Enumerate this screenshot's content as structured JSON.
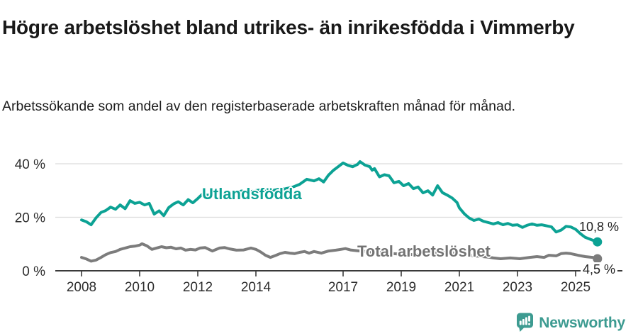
{
  "header": {
    "title": "Högre arbetslöshet bland utrikes- än inrikesfödda i Vimmerby",
    "subtitle": "Arbetssökande som andel av den registerbaserade arbetskraften månad för månad."
  },
  "chart_data": {
    "type": "line",
    "title": "Högre arbetslöshet bland utrikes- än inrikesfödda i Vimmerby",
    "subtitle": "Arbetssökande som andel av den registerbaserade arbetskraften månad för månad.",
    "unit": "%",
    "x_ticks": [
      2008,
      2010,
      2012,
      2014,
      2017,
      2019,
      2021,
      2023,
      2025
    ],
    "y_ticks": [
      {
        "value": 0,
        "label": "0 %"
      },
      {
        "value": 20,
        "label": "20 %"
      },
      {
        "value": 40,
        "label": "40 %"
      }
    ],
    "xlim": [
      2007.1,
      2026.6
    ],
    "ylim": [
      0,
      44
    ],
    "grid": "horizontal",
    "legend_position": "inline-labels",
    "colors": {
      "foreign_born": "#0ca294",
      "total": "#7c7c7c",
      "gridline": "#dcdcdc",
      "axis": "#3a3a3a"
    },
    "series": [
      {
        "name": "Utlandsfödda",
        "color": "#0ca294",
        "end_label": "10,8 %",
        "end_value": 10.8,
        "points": [
          [
            2008.0,
            19.0
          ],
          [
            2008.17,
            18.3
          ],
          [
            2008.33,
            17.2
          ],
          [
            2008.5,
            19.8
          ],
          [
            2008.67,
            21.8
          ],
          [
            2008.83,
            22.5
          ],
          [
            2009.0,
            23.8
          ],
          [
            2009.17,
            23.0
          ],
          [
            2009.33,
            24.6
          ],
          [
            2009.5,
            23.2
          ],
          [
            2009.67,
            26.2
          ],
          [
            2009.83,
            25.2
          ],
          [
            2010.0,
            25.6
          ],
          [
            2010.17,
            24.6
          ],
          [
            2010.33,
            25.2
          ],
          [
            2010.5,
            21.2
          ],
          [
            2010.67,
            22.4
          ],
          [
            2010.83,
            20.6
          ],
          [
            2011.0,
            23.6
          ],
          [
            2011.17,
            25.0
          ],
          [
            2011.33,
            25.8
          ],
          [
            2011.5,
            24.6
          ],
          [
            2011.67,
            26.6
          ],
          [
            2011.83,
            25.4
          ],
          [
            2012.0,
            27.0
          ],
          [
            2012.17,
            28.8
          ],
          [
            2012.33,
            28.2
          ],
          [
            2012.5,
            28.6
          ],
          [
            2012.67,
            29.2
          ],
          [
            2012.83,
            28.8
          ],
          [
            2013.0,
            29.4
          ],
          [
            2013.25,
            29.0
          ],
          [
            2013.5,
            29.8
          ],
          [
            2013.75,
            29.4
          ],
          [
            2014.0,
            30.0
          ],
          [
            2014.25,
            30.4
          ],
          [
            2014.5,
            29.8
          ],
          [
            2014.75,
            30.4
          ],
          [
            2015.0,
            30.6
          ],
          [
            2015.25,
            31.2
          ],
          [
            2015.5,
            32.3
          ],
          [
            2015.75,
            34.2
          ],
          [
            2016.0,
            33.6
          ],
          [
            2016.17,
            34.4
          ],
          [
            2016.33,
            33.2
          ],
          [
            2016.5,
            35.8
          ],
          [
            2016.67,
            37.6
          ],
          [
            2016.83,
            38.9
          ],
          [
            2017.0,
            40.3
          ],
          [
            2017.17,
            39.4
          ],
          [
            2017.33,
            38.9
          ],
          [
            2017.5,
            39.8
          ],
          [
            2017.58,
            40.8
          ],
          [
            2017.75,
            39.5
          ],
          [
            2017.92,
            38.9
          ],
          [
            2018.0,
            37.6
          ],
          [
            2018.08,
            38.2
          ],
          [
            2018.25,
            35.1
          ],
          [
            2018.42,
            35.9
          ],
          [
            2018.58,
            35.5
          ],
          [
            2018.75,
            32.9
          ],
          [
            2018.92,
            33.4
          ],
          [
            2019.08,
            31.8
          ],
          [
            2019.25,
            32.6
          ],
          [
            2019.42,
            30.7
          ],
          [
            2019.58,
            31.3
          ],
          [
            2019.75,
            29.1
          ],
          [
            2019.92,
            29.9
          ],
          [
            2020.08,
            28.3
          ],
          [
            2020.25,
            31.8
          ],
          [
            2020.42,
            29.2
          ],
          [
            2020.58,
            28.3
          ],
          [
            2020.75,
            27.2
          ],
          [
            2020.92,
            25.5
          ],
          [
            2021.0,
            23.5
          ],
          [
            2021.17,
            21.3
          ],
          [
            2021.33,
            19.8
          ],
          [
            2021.5,
            18.8
          ],
          [
            2021.67,
            19.3
          ],
          [
            2021.83,
            18.5
          ],
          [
            2022.0,
            18.0
          ],
          [
            2022.17,
            17.5
          ],
          [
            2022.33,
            18.0
          ],
          [
            2022.5,
            17.2
          ],
          [
            2022.67,
            17.7
          ],
          [
            2022.83,
            17.0
          ],
          [
            2023.0,
            17.2
          ],
          [
            2023.17,
            16.2
          ],
          [
            2023.33,
            17.0
          ],
          [
            2023.5,
            17.5
          ],
          [
            2023.67,
            17.0
          ],
          [
            2023.83,
            17.2
          ],
          [
            2024.0,
            16.8
          ],
          [
            2024.17,
            16.4
          ],
          [
            2024.33,
            14.5
          ],
          [
            2024.5,
            15.2
          ],
          [
            2024.67,
            16.6
          ],
          [
            2024.83,
            16.4
          ],
          [
            2025.0,
            15.5
          ],
          [
            2025.17,
            13.8
          ],
          [
            2025.33,
            12.5
          ],
          [
            2025.5,
            11.8
          ],
          [
            2025.67,
            11.1
          ],
          [
            2025.75,
            10.8
          ]
        ]
      },
      {
        "name": "Total arbetslöshet",
        "color": "#7c7c7c",
        "end_label": "4,5 %",
        "end_value": 4.5,
        "points": [
          [
            2008.0,
            5.0
          ],
          [
            2008.17,
            4.4
          ],
          [
            2008.33,
            3.6
          ],
          [
            2008.5,
            4.0
          ],
          [
            2008.67,
            5.0
          ],
          [
            2008.83,
            6.0
          ],
          [
            2009.0,
            6.8
          ],
          [
            2009.17,
            7.2
          ],
          [
            2009.33,
            8.0
          ],
          [
            2009.5,
            8.5
          ],
          [
            2009.67,
            9.0
          ],
          [
            2009.83,
            9.2
          ],
          [
            2010.0,
            9.6
          ],
          [
            2010.08,
            10.1
          ],
          [
            2010.25,
            9.3
          ],
          [
            2010.42,
            8.0
          ],
          [
            2010.58,
            8.5
          ],
          [
            2010.75,
            9.0
          ],
          [
            2010.92,
            8.6
          ],
          [
            2011.08,
            8.8
          ],
          [
            2011.25,
            8.2
          ],
          [
            2011.42,
            8.5
          ],
          [
            2011.58,
            7.7
          ],
          [
            2011.75,
            8.0
          ],
          [
            2011.92,
            7.8
          ],
          [
            2012.08,
            8.5
          ],
          [
            2012.25,
            8.7
          ],
          [
            2012.5,
            7.4
          ],
          [
            2012.75,
            8.5
          ],
          [
            2012.92,
            8.7
          ],
          [
            2013.08,
            8.2
          ],
          [
            2013.33,
            7.7
          ],
          [
            2013.58,
            7.8
          ],
          [
            2013.83,
            8.5
          ],
          [
            2014.0,
            8.0
          ],
          [
            2014.17,
            7.0
          ],
          [
            2014.33,
            5.8
          ],
          [
            2014.5,
            5.0
          ],
          [
            2014.67,
            5.7
          ],
          [
            2014.83,
            6.4
          ],
          [
            2015.0,
            6.9
          ],
          [
            2015.17,
            6.6
          ],
          [
            2015.33,
            6.4
          ],
          [
            2015.5,
            6.9
          ],
          [
            2015.67,
            7.2
          ],
          [
            2015.83,
            6.6
          ],
          [
            2016.0,
            7.2
          ],
          [
            2016.25,
            6.6
          ],
          [
            2016.5,
            7.4
          ],
          [
            2016.75,
            7.7
          ],
          [
            2016.92,
            8.0
          ],
          [
            2017.08,
            8.3
          ],
          [
            2017.25,
            7.8
          ],
          [
            2017.5,
            7.5
          ],
          [
            2017.75,
            7.2
          ],
          [
            2018.0,
            7.0
          ],
          [
            2018.5,
            6.6
          ],
          [
            2019.0,
            6.2
          ],
          [
            2019.5,
            6.0
          ],
          [
            2020.0,
            6.6
          ],
          [
            2020.5,
            7.0
          ],
          [
            2021.0,
            6.4
          ],
          [
            2021.5,
            5.6
          ],
          [
            2022.0,
            5.1
          ],
          [
            2022.17,
            4.8
          ],
          [
            2022.42,
            4.5
          ],
          [
            2022.75,
            4.8
          ],
          [
            2023.08,
            4.5
          ],
          [
            2023.42,
            5.0
          ],
          [
            2023.67,
            5.3
          ],
          [
            2023.92,
            5.0
          ],
          [
            2024.08,
            5.8
          ],
          [
            2024.33,
            5.6
          ],
          [
            2024.5,
            6.4
          ],
          [
            2024.67,
            6.6
          ],
          [
            2024.83,
            6.4
          ],
          [
            2025.08,
            5.8
          ],
          [
            2025.33,
            5.3
          ],
          [
            2025.58,
            5.0
          ],
          [
            2025.75,
            4.5
          ]
        ]
      }
    ]
  },
  "footer": {
    "brand": "Newsworthy",
    "logo_icon": "bar-chart-speech-bubble-icon",
    "brand_color": "#3d9b91"
  }
}
